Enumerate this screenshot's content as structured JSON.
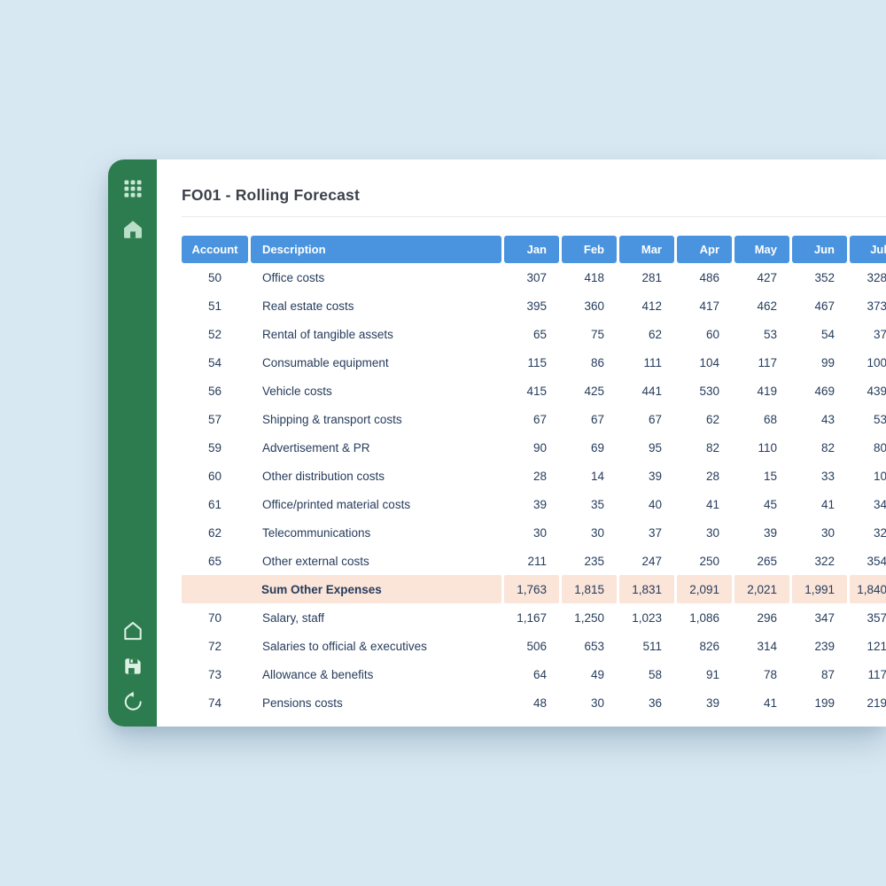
{
  "colors": {
    "background": "#D8E8F2",
    "sidebar_green": "#2D7C4F",
    "header_blue": "#4A94DF",
    "sum_pink": "#FBE4D8",
    "text_navy": "#263C5C",
    "title_gray": "#3B414B",
    "icon_light": "#C9E7D4",
    "divider": "#EBEBEB"
  },
  "window": {
    "title": "FO01 - Rolling Forecast"
  },
  "sidebar": {
    "top_buttons": [
      {
        "label": "apps",
        "icon": "grid-icon"
      },
      {
        "label": "home",
        "icon": "home-icon"
      }
    ],
    "bottom_buttons": [
      {
        "label": "home",
        "icon": "home-outline-icon"
      },
      {
        "label": "save",
        "icon": "save-icon"
      },
      {
        "label": "refresh",
        "icon": "refresh-icon"
      }
    ]
  },
  "table": {
    "columns": [
      "Account",
      "Description",
      "Jan",
      "Feb",
      "Mar",
      "Apr",
      "May",
      "Jun",
      "Jul"
    ],
    "rows": [
      {
        "account": "50",
        "description": "Office costs",
        "values": [
          "307",
          "418",
          "281",
          "486",
          "427",
          "352",
          "328"
        ]
      },
      {
        "account": "51",
        "description": "Real estate costs",
        "values": [
          "395",
          "360",
          "412",
          "417",
          "462",
          "467",
          "373"
        ]
      },
      {
        "account": "52",
        "description": "Rental of tangible assets",
        "values": [
          "65",
          "75",
          "62",
          "60",
          "53",
          "54",
          "37"
        ]
      },
      {
        "account": "54",
        "description": "Consumable equipment",
        "values": [
          "115",
          "86",
          "111",
          "104",
          "117",
          "99",
          "100"
        ]
      },
      {
        "account": "56",
        "description": "Vehicle costs",
        "values": [
          "415",
          "425",
          "441",
          "530",
          "419",
          "469",
          "439"
        ]
      },
      {
        "account": "57",
        "description": "Shipping & transport costs",
        "values": [
          "67",
          "67",
          "67",
          "62",
          "68",
          "43",
          "53"
        ]
      },
      {
        "account": "59",
        "description": "Advertisement & PR",
        "values": [
          "90",
          "69",
          "95",
          "82",
          "110",
          "82",
          "80"
        ]
      },
      {
        "account": "60",
        "description": "Other distribution costs",
        "values": [
          "28",
          "14",
          "39",
          "28",
          "15",
          "33",
          "10"
        ]
      },
      {
        "account": "61",
        "description": "Office/printed material costs",
        "values": [
          "39",
          "35",
          "40",
          "41",
          "45",
          "41",
          "34"
        ]
      },
      {
        "account": "62",
        "description": "Telecommunications",
        "values": [
          "30",
          "30",
          "37",
          "30",
          "39",
          "30",
          "32"
        ]
      },
      {
        "account": "65",
        "description": "Other external costs",
        "values": [
          "211",
          "235",
          "247",
          "250",
          "265",
          "322",
          "354"
        ]
      },
      {
        "sum": true,
        "account": "",
        "description": "Sum Other Expenses",
        "values": [
          "1,763",
          "1,815",
          "1,831",
          "2,091",
          "2,021",
          "1,991",
          "1,840"
        ]
      },
      {
        "account": "70",
        "description": "Salary, staff",
        "values": [
          "1,167",
          "1,250",
          "1,023",
          "1,086",
          "296",
          "347",
          "357"
        ]
      },
      {
        "account": "72",
        "description": "Salaries to official & executives",
        "values": [
          "506",
          "653",
          "511",
          "826",
          "314",
          "239",
          "121"
        ]
      },
      {
        "account": "73",
        "description": "Allowance & benefits",
        "values": [
          "64",
          "49",
          "58",
          "91",
          "78",
          "87",
          "117"
        ]
      },
      {
        "account": "74",
        "description": "Pensions costs",
        "values": [
          "48",
          "30",
          "36",
          "39",
          "41",
          "199",
          "219"
        ]
      }
    ]
  }
}
